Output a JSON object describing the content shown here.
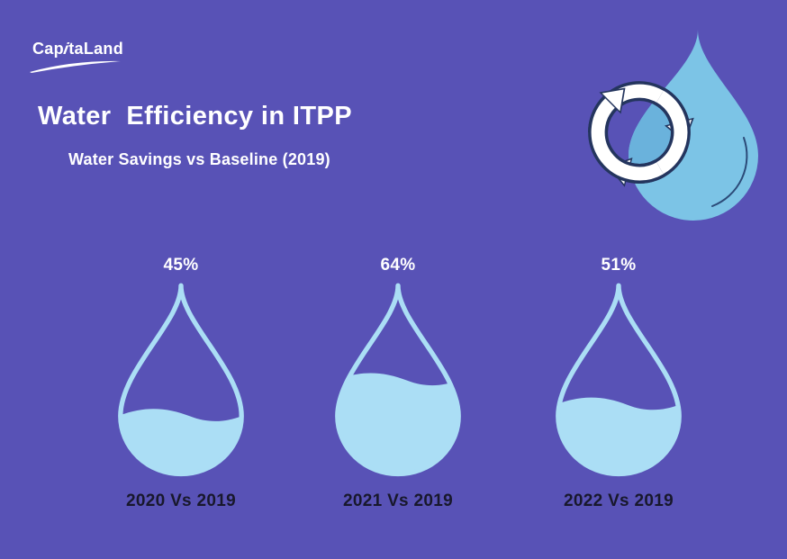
{
  "brand": {
    "logo_pre": "Cap",
    "logo_i": "i",
    "logo_post": "taLand",
    "logo_full": "CapitaLand"
  },
  "header": {
    "title": "Water  Efficiency in ITPP",
    "subtitle": "Water Savings vs Baseline (2019)"
  },
  "colors": {
    "bg": "#5852b6",
    "water": "#abdef5",
    "hero-drop": "#7cc4e6",
    "hero-inner": "#6ab2dc",
    "navy": "#24355e",
    "label": "#18182c",
    "text": "#ffffff"
  },
  "chart_data": {
    "type": "pictorial-fill",
    "title": "Water Efficiency in ITPP",
    "subtitle": "Water Savings vs Baseline (2019)",
    "unit": "%",
    "baseline_year": "2019",
    "categories": [
      "2020 Vs 2019",
      "2021 Vs 2019",
      "2022 Vs 2019"
    ],
    "values": [
      45,
      64,
      51
    ],
    "points": [
      {
        "label": "2020 Vs 2019",
        "value": 45,
        "pct_label": "45%"
      },
      {
        "label": "2021 Vs 2019",
        "value": 64,
        "pct_label": "64%"
      },
      {
        "label": "2022 Vs 2019",
        "value": 51,
        "pct_label": "51%"
      }
    ]
  }
}
